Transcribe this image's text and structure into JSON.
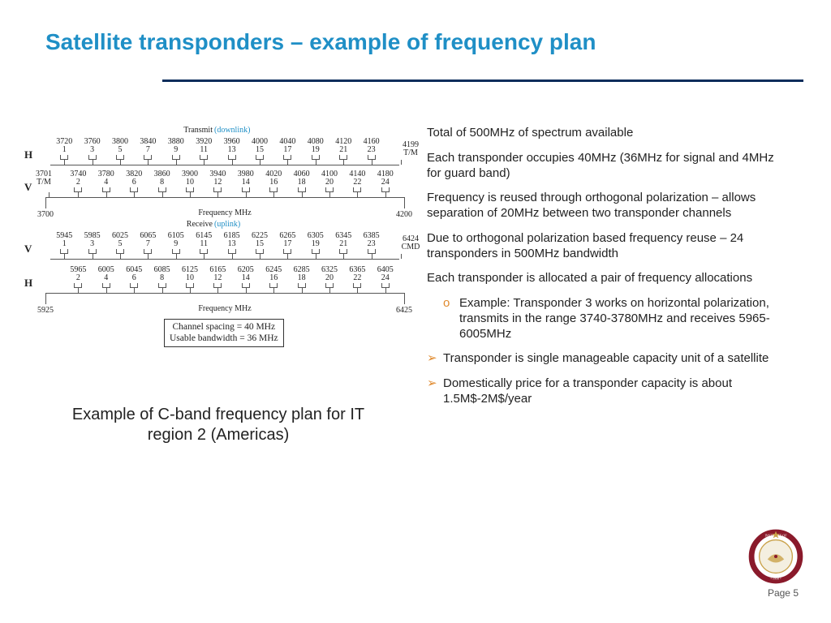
{
  "title": "Satellite transponders – example of frequency plan",
  "colors": {
    "title": "#1f8fc6",
    "rule": "#0b2d5b",
    "accent": "#e08a2e",
    "logo_ring": "#8a1a2b",
    "logo_gold": "#caa24a"
  },
  "page_number": "Page 5",
  "diagram": {
    "transmit_label": "Transmit",
    "downlink_label": "(downlink)",
    "receive_label": "Receive",
    "uplink_label": "(uplink)",
    "freq_label": "Frequency MHz",
    "row_labels_tx": [
      "H",
      "V"
    ],
    "row_labels_rx": [
      "V",
      "H"
    ],
    "tx_start": 3700,
    "tx_end": 4200,
    "rx_start": 5925,
    "rx_end": 6425,
    "tx_left_extra": "3701\nT/M",
    "tx_right_extra": "4199\nT/M",
    "rx_right_extra": "6424\nCMD",
    "channel_spacing": 40,
    "tx_H_centers": [
      3720,
      3760,
      3800,
      3840,
      3880,
      3920,
      3960,
      4000,
      4040,
      4080,
      4120,
      4160
    ],
    "tx_H_nums": [
      1,
      3,
      5,
      7,
      9,
      11,
      13,
      15,
      17,
      19,
      21,
      23
    ],
    "tx_V_centers": [
      3740,
      3780,
      3820,
      3860,
      3900,
      3940,
      3980,
      4020,
      4060,
      4100,
      4140,
      4180
    ],
    "tx_V_nums": [
      2,
      4,
      6,
      8,
      10,
      12,
      14,
      16,
      18,
      20,
      22,
      24
    ],
    "rx_V_centers": [
      5945,
      5985,
      6025,
      6065,
      6105,
      6145,
      6185,
      6225,
      6265,
      6305,
      6345,
      6385
    ],
    "rx_V_nums": [
      1,
      3,
      5,
      7,
      9,
      11,
      13,
      15,
      17,
      19,
      21,
      23
    ],
    "rx_H_centers": [
      5965,
      6005,
      6045,
      6085,
      6125,
      6165,
      6205,
      6245,
      6285,
      6325,
      6365,
      6405
    ],
    "rx_H_nums": [
      2,
      4,
      6,
      8,
      10,
      12,
      14,
      16,
      18,
      20,
      22,
      24
    ],
    "footnote_lines": [
      "Channel spacing = 40 MHz",
      "Usable bandwidth = 36 MHz"
    ]
  },
  "caption": "Example of C-band frequency plan for IT region 2 (Americas)",
  "bullets": {
    "p1": "Total of 500MHz of spectrum available",
    "p2": "Each transponder occupies 40MHz (36MHz for signal and 4MHz for guard band)",
    "p3": "Frequency is reused through orthogonal polarization – allows separation of 20MHz between two transponder channels",
    "p4": "Due to orthogonal polarization based frequency reuse – 24 transponders in 500MHz  bandwidth",
    "p5": "Each transponder is allocated a pair of frequency allocations",
    "p5a": "Example: Transponder 3 works on horizontal polarization, transmits in the range 3740-3780MHz and receives 5965-6005MHz",
    "p6": "Transponder is single manageable capacity unit of a satellite",
    "p7": "Domestically price for a transponder capacity is about 1.5M$-2M$/year"
  }
}
